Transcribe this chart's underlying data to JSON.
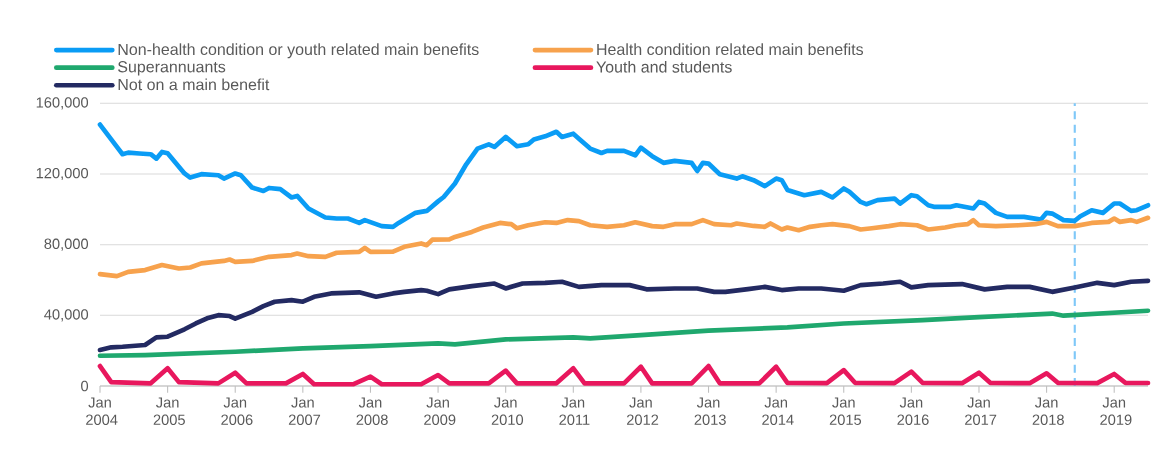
{
  "chart_data": {
    "type": "line",
    "xlim": [
      "2004-01",
      "2019-07"
    ],
    "ylim": [
      0,
      160000
    ],
    "xticks": [
      {
        "value": "2004-01",
        "label": "Jan 2004"
      },
      {
        "value": "2005-01",
        "label": "Jan 2005"
      },
      {
        "value": "2006-01",
        "label": "Jan 2006"
      },
      {
        "value": "2007-01",
        "label": "Jan 2007"
      },
      {
        "value": "2008-01",
        "label": "Jan 2008"
      },
      {
        "value": "2009-01",
        "label": "Jan 2009"
      },
      {
        "value": "2010-01",
        "label": "Jan 2010"
      },
      {
        "value": "2011-01",
        "label": "Jan 2011"
      },
      {
        "value": "2012-01",
        "label": "Jan 2012"
      },
      {
        "value": "2013-01",
        "label": "Jan 2013"
      },
      {
        "value": "2014-01",
        "label": "Jan 2014"
      },
      {
        "value": "2015-01",
        "label": "Jan 2015"
      },
      {
        "value": "2016-01",
        "label": "Jan 2016"
      },
      {
        "value": "2017-01",
        "label": "Jan 2017"
      },
      {
        "value": "2018-01",
        "label": "Jan 2018"
      },
      {
        "value": "2019-01",
        "label": "Jan 2019"
      }
    ],
    "yticks": [
      {
        "value": 0,
        "label": "0"
      },
      {
        "value": 40000,
        "label": "40,000"
      },
      {
        "value": 80000,
        "label": "80,000"
      },
      {
        "value": 120000,
        "label": "120,000"
      },
      {
        "value": 160000,
        "label": "160,000"
      }
    ],
    "grid": "y",
    "legend": "top",
    "ref_lines": [
      {
        "axis": "x",
        "value": "2018-06",
        "color": "#7fc8f8",
        "line_style": "dashed"
      }
    ],
    "series": [
      {
        "name": "Non-health condition or youth related main benefits",
        "color": "#0a9cf5",
        "x": [
          "2004-01",
          "2004-04",
          "2004-05",
          "2004-06",
          "2004-08",
          "2004-10",
          "2004-11",
          "2004-12",
          "2005-01",
          "2005-04",
          "2005-05",
          "2005-07",
          "2005-10",
          "2005-11",
          "2006-01",
          "2006-02",
          "2006-04",
          "2006-06",
          "2006-07",
          "2006-09",
          "2006-11",
          "2006-12",
          "2007-02",
          "2007-05",
          "2007-07",
          "2007-09",
          "2007-11",
          "2007-12",
          "2008-03",
          "2008-05",
          "2008-06",
          "2008-09",
          "2008-11",
          "2009-01",
          "2009-02",
          "2009-04",
          "2009-06",
          "2009-08",
          "2009-10",
          "2009-11",
          "2010-01",
          "2010-03",
          "2010-05",
          "2010-06",
          "2010-08",
          "2010-10",
          "2010-11",
          "2011-01",
          "2011-02",
          "2011-04",
          "2011-06",
          "2011-07",
          "2011-10",
          "2011-12",
          "2012-01",
          "2012-03",
          "2012-05",
          "2012-07",
          "2012-10",
          "2012-11",
          "2012-12",
          "2013-01",
          "2013-03",
          "2013-06",
          "2013-07",
          "2013-09",
          "2013-11",
          "2014-01",
          "2014-02",
          "2014-03",
          "2014-06",
          "2014-09",
          "2014-11",
          "2015-01",
          "2015-02",
          "2015-04",
          "2015-05",
          "2015-07",
          "2015-10",
          "2015-11",
          "2016-01",
          "2016-02",
          "2016-04",
          "2016-05",
          "2016-08",
          "2016-09",
          "2016-12",
          "2017-01",
          "2017-02",
          "2017-04",
          "2017-06",
          "2017-09",
          "2017-12",
          "2018-01",
          "2018-02",
          "2018-04",
          "2018-06",
          "2018-07",
          "2018-09",
          "2018-11",
          "2019-01",
          "2019-02",
          "2019-04",
          "2019-05",
          "2019-07"
        ],
        "values": [
          148000,
          135300,
          131200,
          132100,
          131600,
          131200,
          128700,
          132500,
          131700,
          120300,
          118000,
          119900,
          119300,
          117400,
          120300,
          119300,
          112300,
          110400,
          112100,
          111400,
          106700,
          107600,
          100500,
          95400,
          94800,
          94800,
          92300,
          93900,
          90500,
          90100,
          92300,
          98000,
          99100,
          104500,
          107000,
          114600,
          125500,
          134400,
          136800,
          135300,
          141000,
          135700,
          136800,
          139500,
          141300,
          143900,
          141000,
          142800,
          140000,
          134400,
          131900,
          133100,
          133100,
          130600,
          134900,
          130100,
          126300,
          127400,
          126300,
          121700,
          126300,
          125900,
          119900,
          117400,
          118700,
          116500,
          113100,
          117400,
          116500,
          111000,
          108000,
          109900,
          106700,
          111800,
          109900,
          104200,
          102900,
          105200,
          106100,
          103300,
          108000,
          107400,
          102300,
          101400,
          101400,
          102300,
          100500,
          104200,
          103300,
          98000,
          95700,
          95700,
          94200,
          98000,
          97600,
          93900,
          93500,
          96100,
          99500,
          98000,
          103300,
          103300,
          99100,
          99500,
          102300
        ]
      },
      {
        "name": "Health condition related main benefits",
        "color": "#f7a24d",
        "x": [
          "2004-01",
          "2004-04",
          "2004-06",
          "2004-09",
          "2004-12",
          "2005-03",
          "2005-05",
          "2005-07",
          "2005-11",
          "2005-12",
          "2006-01",
          "2006-04",
          "2006-07",
          "2006-11",
          "2006-12",
          "2007-02",
          "2007-05",
          "2007-07",
          "2007-11",
          "2007-12",
          "2008-01",
          "2008-05",
          "2008-07",
          "2008-10",
          "2008-11",
          "2008-12",
          "2009-03",
          "2009-04",
          "2009-07",
          "2009-09",
          "2009-12",
          "2010-02",
          "2010-03",
          "2010-05",
          "2010-08",
          "2010-10",
          "2010-12",
          "2011-02",
          "2011-04",
          "2011-07",
          "2011-10",
          "2011-12",
          "2012-03",
          "2012-05",
          "2012-07",
          "2012-10",
          "2012-12",
          "2013-02",
          "2013-05",
          "2013-06",
          "2013-09",
          "2013-11",
          "2013-12",
          "2014-02",
          "2014-03",
          "2014-05",
          "2014-07",
          "2014-09",
          "2014-11",
          "2015-02",
          "2015-04",
          "2015-06",
          "2015-09",
          "2015-11",
          "2016-02",
          "2016-04",
          "2016-07",
          "2016-09",
          "2016-11",
          "2016-12",
          "2017-01",
          "2017-04",
          "2017-08",
          "2017-11",
          "2018-01",
          "2018-03",
          "2018-06",
          "2018-09",
          "2018-12",
          "2019-01",
          "2019-02",
          "2019-04",
          "2019-05",
          "2019-07"
        ],
        "values": [
          63300,
          62200,
          64600,
          65600,
          68500,
          66500,
          67100,
          69400,
          70800,
          71600,
          70300,
          70800,
          73100,
          74100,
          75000,
          73500,
          73100,
          75400,
          75900,
          78200,
          75900,
          76100,
          78800,
          80700,
          79700,
          82900,
          83000,
          84400,
          87200,
          89700,
          92300,
          91600,
          89300,
          91000,
          92700,
          92300,
          93900,
          93300,
          91000,
          90100,
          91000,
          92700,
          90500,
          90100,
          91600,
          91600,
          93900,
          91600,
          91000,
          92000,
          90600,
          90100,
          92000,
          88600,
          89700,
          88200,
          90100,
          91000,
          91600,
          90500,
          88600,
          89300,
          90500,
          91600,
          91000,
          88600,
          89700,
          91000,
          91600,
          93900,
          91000,
          90500,
          91000,
          91600,
          92900,
          90500,
          90500,
          92300,
          92900,
          94800,
          92900,
          93900,
          92900,
          95200
        ]
      },
      {
        "name": "Superannuants",
        "color": "#1fa86e",
        "x": [
          "2004-01",
          "2004-09",
          "2006-01",
          "2007-01",
          "2008-01",
          "2009-01",
          "2009-04",
          "2010-01",
          "2011-01",
          "2011-04",
          "2012-01",
          "2013-01",
          "2014-03",
          "2015-01",
          "2016-03",
          "2017-01",
          "2018-02",
          "2018-04",
          "2019-07"
        ],
        "values": [
          17100,
          17500,
          19400,
          21300,
          22600,
          24100,
          23600,
          26400,
          27500,
          27000,
          28800,
          31300,
          33200,
          35400,
          37300,
          39000,
          41000,
          39800,
          42600
        ]
      },
      {
        "name": "Youth and students",
        "color": "#e8175d",
        "x": [
          "2004-01",
          "2004-03",
          "2004-10",
          "2005-01",
          "2005-03",
          "2005-10",
          "2006-01",
          "2006-03",
          "2006-10",
          "2007-01",
          "2007-03",
          "2007-10",
          "2008-01",
          "2008-03",
          "2008-10",
          "2009-01",
          "2009-03",
          "2009-10",
          "2010-01",
          "2010-03",
          "2010-10",
          "2011-01",
          "2011-03",
          "2011-10",
          "2012-01",
          "2012-03",
          "2012-10",
          "2013-01",
          "2013-03",
          "2013-10",
          "2014-01",
          "2014-03",
          "2014-10",
          "2015-01",
          "2015-03",
          "2015-10",
          "2016-01",
          "2016-03",
          "2016-10",
          "2017-01",
          "2017-03",
          "2017-10",
          "2018-01",
          "2018-03",
          "2018-10",
          "2019-01",
          "2019-03",
          "2019-07"
        ],
        "values": [
          11300,
          2200,
          1500,
          10000,
          2200,
          1500,
          7500,
          1500,
          1500,
          6800,
          1000,
          1000,
          5300,
          1000,
          1000,
          6200,
          1500,
          1500,
          8700,
          1500,
          1500,
          10000,
          1500,
          1500,
          10900,
          1500,
          1500,
          11300,
          1500,
          1500,
          10900,
          1800,
          1600,
          9000,
          1800,
          1600,
          8100,
          1800,
          1600,
          7500,
          1800,
          1600,
          7200,
          1800,
          1600,
          6800,
          1800,
          1700
        ]
      },
      {
        "name": "Not on a main benefit",
        "color": "#232a62",
        "x": [
          "2004-01",
          "2004-03",
          "2004-05",
          "2004-09",
          "2004-11",
          "2005-01",
          "2005-04",
          "2005-06",
          "2005-08",
          "2005-10",
          "2005-12",
          "2006-01",
          "2006-04",
          "2006-06",
          "2006-08",
          "2006-11",
          "2007-01",
          "2007-03",
          "2007-06",
          "2007-11",
          "2008-02",
          "2008-05",
          "2008-07",
          "2008-10",
          "2008-11",
          "2009-01",
          "2009-03",
          "2009-07",
          "2009-11",
          "2010-01",
          "2010-04",
          "2010-08",
          "2010-11",
          "2011-02",
          "2011-06",
          "2011-11",
          "2012-02",
          "2012-07",
          "2012-11",
          "2013-02",
          "2013-04",
          "2013-08",
          "2013-11",
          "2014-02",
          "2014-05",
          "2014-09",
          "2015-01",
          "2015-04",
          "2015-08",
          "2015-11",
          "2016-01",
          "2016-04",
          "2016-10",
          "2017-02",
          "2017-06",
          "2017-10",
          "2018-02",
          "2018-06",
          "2018-10",
          "2019-01",
          "2019-04",
          "2019-07"
        ],
        "values": [
          20400,
          21900,
          22200,
          23200,
          27500,
          27900,
          32100,
          35400,
          38300,
          40100,
          39600,
          38100,
          42000,
          45200,
          47700,
          48600,
          47700,
          50500,
          52400,
          53000,
          50500,
          52400,
          53300,
          54300,
          53900,
          52000,
          54700,
          56500,
          58000,
          55200,
          58000,
          58400,
          59000,
          56100,
          57100,
          57100,
          54700,
          55200,
          55200,
          53300,
          53300,
          54800,
          56100,
          54300,
          55200,
          55200,
          53900,
          57100,
          58000,
          59000,
          55800,
          57100,
          57700,
          54700,
          56100,
          56100,
          53300,
          55800,
          58400,
          57100,
          59000,
          59500
        ]
      }
    ]
  }
}
